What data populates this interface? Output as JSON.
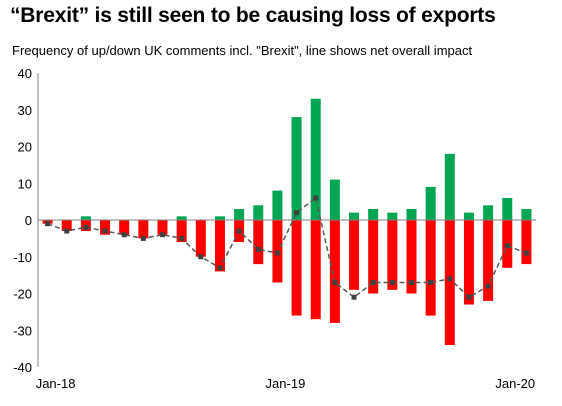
{
  "title": "“Brexit” is still seen to be causing loss of exports",
  "subtitle": "Frequency of up/down UK comments  incl. \"Brexit\", line shows net overall impact",
  "chart_data": {
    "type": "bar",
    "categories": [
      "Jan-18",
      "Feb-18",
      "Mar-18",
      "Apr-18",
      "May-18",
      "Jun-18",
      "Jul-18",
      "Aug-18",
      "Sep-18",
      "Oct-18",
      "Nov-18",
      "Dec-18",
      "Jan-19",
      "Feb-19",
      "Mar-19",
      "Apr-19",
      "May-19",
      "Jun-19",
      "Jul-19",
      "Aug-19",
      "Sep-19",
      "Oct-19",
      "Nov-19",
      "Dec-19",
      "Jan-20",
      "Feb-20"
    ],
    "series": [
      {
        "values": [
          0,
          0,
          1,
          0,
          0,
          0,
          0,
          1,
          0,
          1,
          3,
          4,
          8,
          28,
          33,
          11,
          2,
          3,
          2,
          3,
          9,
          18,
          2,
          4,
          6,
          3
        ],
        "color": "#00a651"
      },
      {
        "values": [
          -1,
          -3,
          -3,
          -4,
          -4,
          -5,
          -4,
          -6,
          -10,
          -14,
          -6,
          -12,
          -17,
          -26,
          -27,
          -28,
          -19,
          -20,
          -19,
          -20,
          -26,
          -34,
          -23,
          -22,
          -13,
          -12
        ],
        "color": "#ff0000"
      },
      {
        "type": "line",
        "values": [
          -1,
          -3,
          -2,
          -3,
          -4,
          -5,
          -4,
          -5,
          -10,
          -13,
          -3,
          -8,
          -9,
          2,
          6,
          -17,
          -21,
          -17,
          -17,
          -17,
          -17,
          -16,
          -21,
          -18,
          -7,
          -9
        ],
        "color": "#595959"
      }
    ],
    "x_tick_labels": [
      "Jan-18",
      "Jan-19",
      "Jan-20"
    ],
    "y_tick_labels": [
      "-40",
      "-30",
      "-20",
      "-10",
      "0",
      "10",
      "20",
      "30",
      "40"
    ],
    "ylim": [
      -40,
      40
    ],
    "grid": false,
    "legend": "none"
  }
}
